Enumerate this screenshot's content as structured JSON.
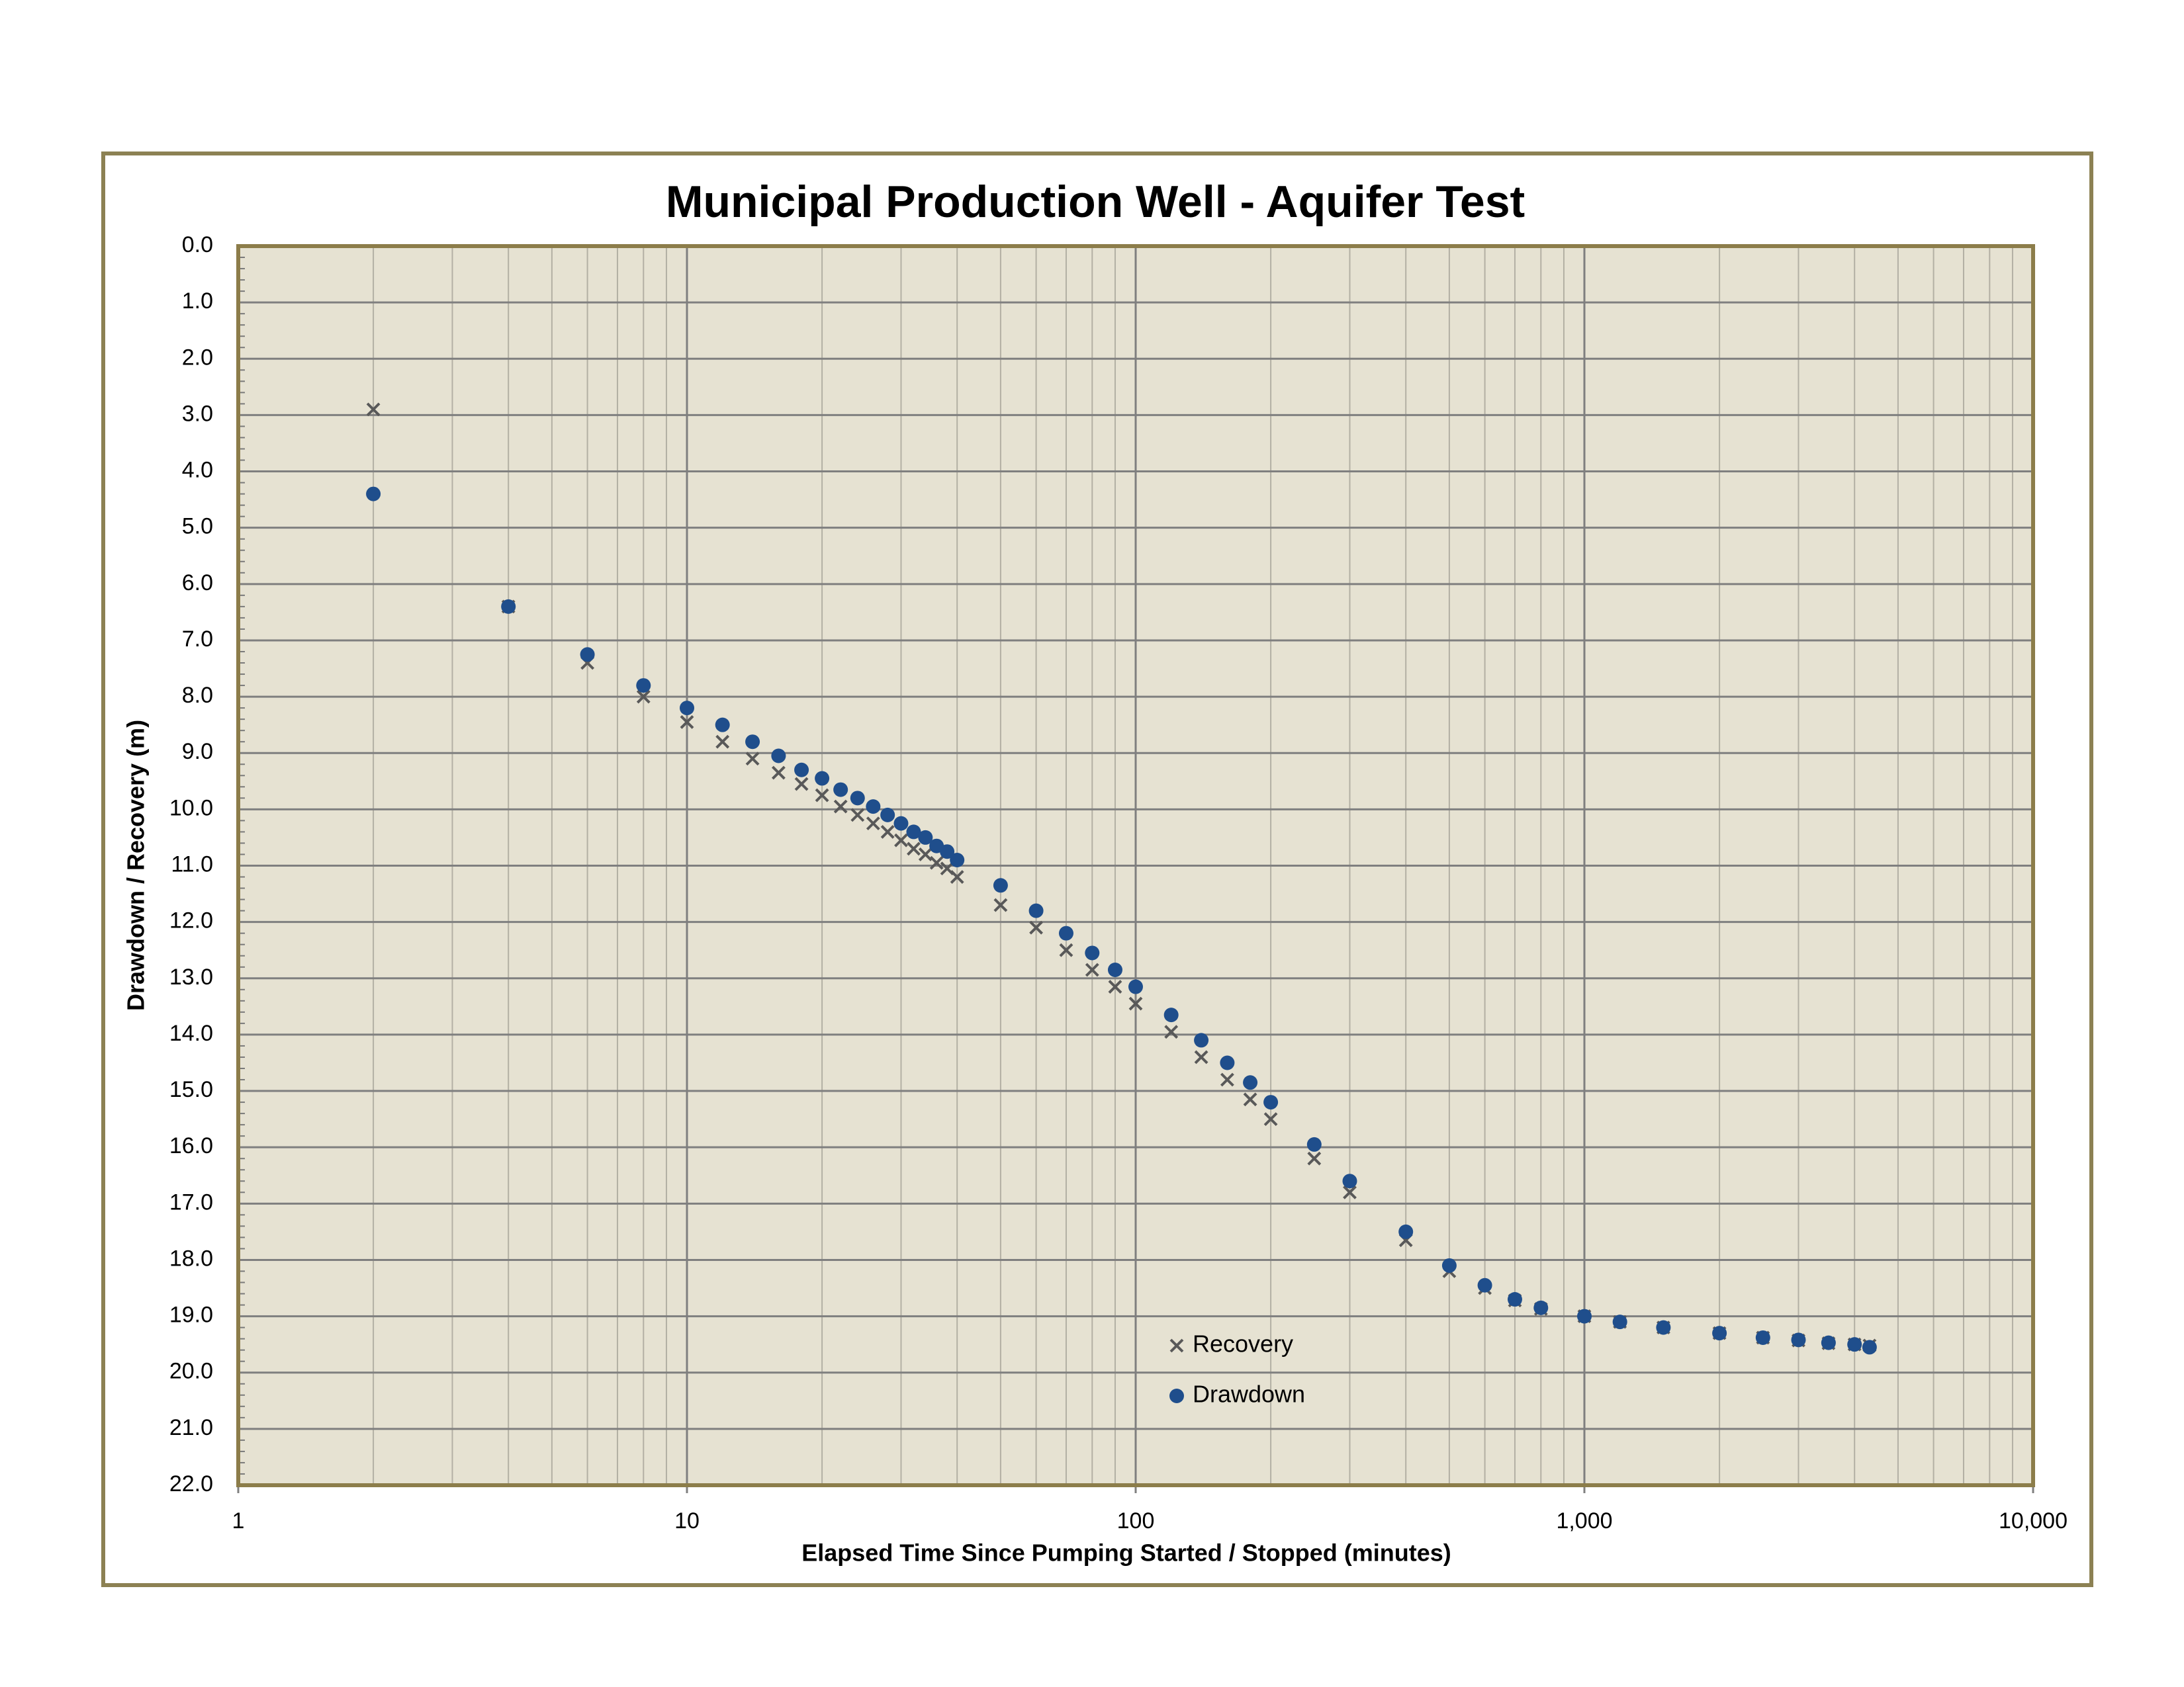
{
  "chart_data": {
    "type": "scatter",
    "title": "Municipal Production Well - Aquifer Test",
    "x_label": "Elapsed Time Since Pumping Started / Stopped (minutes)",
    "y_label": "Drawdown / Recovery (m)",
    "x": [
      2,
      4,
      6,
      8,
      10,
      12,
      14,
      16,
      18,
      20,
      22,
      24,
      26,
      28,
      30,
      32,
      34,
      36,
      38,
      40,
      50,
      60,
      70,
      80,
      90,
      100,
      120,
      140,
      160,
      180,
      200,
      250,
      300,
      400,
      500,
      600,
      700,
      800,
      1000,
      1200,
      1500,
      2000,
      2500,
      3000,
      3500,
      4000,
      4320
    ],
    "series": [
      {
        "name": "Recovery",
        "color": "#595959",
        "marker": "x",
        "values": [
          2.9,
          6.4,
          7.4,
          8.0,
          8.45,
          8.8,
          9.1,
          9.35,
          9.55,
          9.75,
          9.95,
          10.1,
          10.25,
          10.4,
          10.55,
          10.7,
          10.8,
          10.95,
          11.05,
          11.2,
          11.7,
          12.1,
          12.5,
          12.85,
          13.15,
          13.45,
          13.95,
          14.4,
          14.8,
          15.15,
          15.5,
          16.2,
          16.8,
          17.65,
          18.2,
          18.5,
          18.72,
          18.87,
          19.0,
          19.1,
          19.2,
          19.3,
          19.38,
          19.43,
          19.48,
          19.5,
          19.52
        ]
      },
      {
        "name": "Drawdown",
        "color": "#1f4e8c",
        "marker": "circle",
        "values": [
          4.4,
          6.4,
          7.25,
          7.8,
          8.2,
          8.5,
          8.8,
          9.05,
          9.3,
          9.45,
          9.65,
          9.8,
          9.95,
          10.1,
          10.25,
          10.4,
          10.5,
          10.65,
          10.75,
          10.9,
          11.35,
          11.8,
          12.2,
          12.55,
          12.85,
          13.15,
          13.65,
          14.1,
          14.5,
          14.85,
          15.2,
          15.95,
          16.6,
          17.5,
          18.1,
          18.45,
          18.7,
          18.85,
          19.0,
          19.1,
          19.2,
          19.3,
          19.38,
          19.42,
          19.47,
          19.5,
          19.55
        ]
      }
    ],
    "xscale": "log",
    "xlim": [
      1,
      10000
    ],
    "xticks": [
      1,
      10,
      100,
      {
        "value": 1000,
        "label": "1,000"
      },
      {
        "value": 10000,
        "label": "10,000"
      }
    ],
    "ylim": [
      0,
      22
    ],
    "y_inverted": true,
    "yticks": [
      {
        "value": 0,
        "label": "0.0"
      },
      {
        "value": 1,
        "label": "1.0"
      },
      {
        "value": 2,
        "label": "2.0"
      },
      {
        "value": 3,
        "label": "3.0"
      },
      {
        "value": 4,
        "label": "4.0"
      },
      {
        "value": 5,
        "label": "5.0"
      },
      {
        "value": 6,
        "label": "6.0"
      },
      {
        "value": 7,
        "label": "7.0"
      },
      {
        "value": 8,
        "label": "8.0"
      },
      {
        "value": 9,
        "label": "9.0"
      },
      {
        "value": 10,
        "label": "10.0"
      },
      {
        "value": 11,
        "label": "11.0"
      },
      {
        "value": 12,
        "label": "12.0"
      },
      {
        "value": 13,
        "label": "13.0"
      },
      {
        "value": 14,
        "label": "14.0"
      },
      {
        "value": 15,
        "label": "15.0"
      },
      {
        "value": 16,
        "label": "16.0"
      },
      {
        "value": 17,
        "label": "17.0"
      },
      {
        "value": 18,
        "label": "18.0"
      },
      {
        "value": 19,
        "label": "19.0"
      },
      {
        "value": 20,
        "label": "20.0"
      },
      {
        "value": 21,
        "label": "21.0"
      },
      {
        "value": 22,
        "label": "22.0"
      }
    ],
    "grid": true,
    "legend": "lower center"
  }
}
